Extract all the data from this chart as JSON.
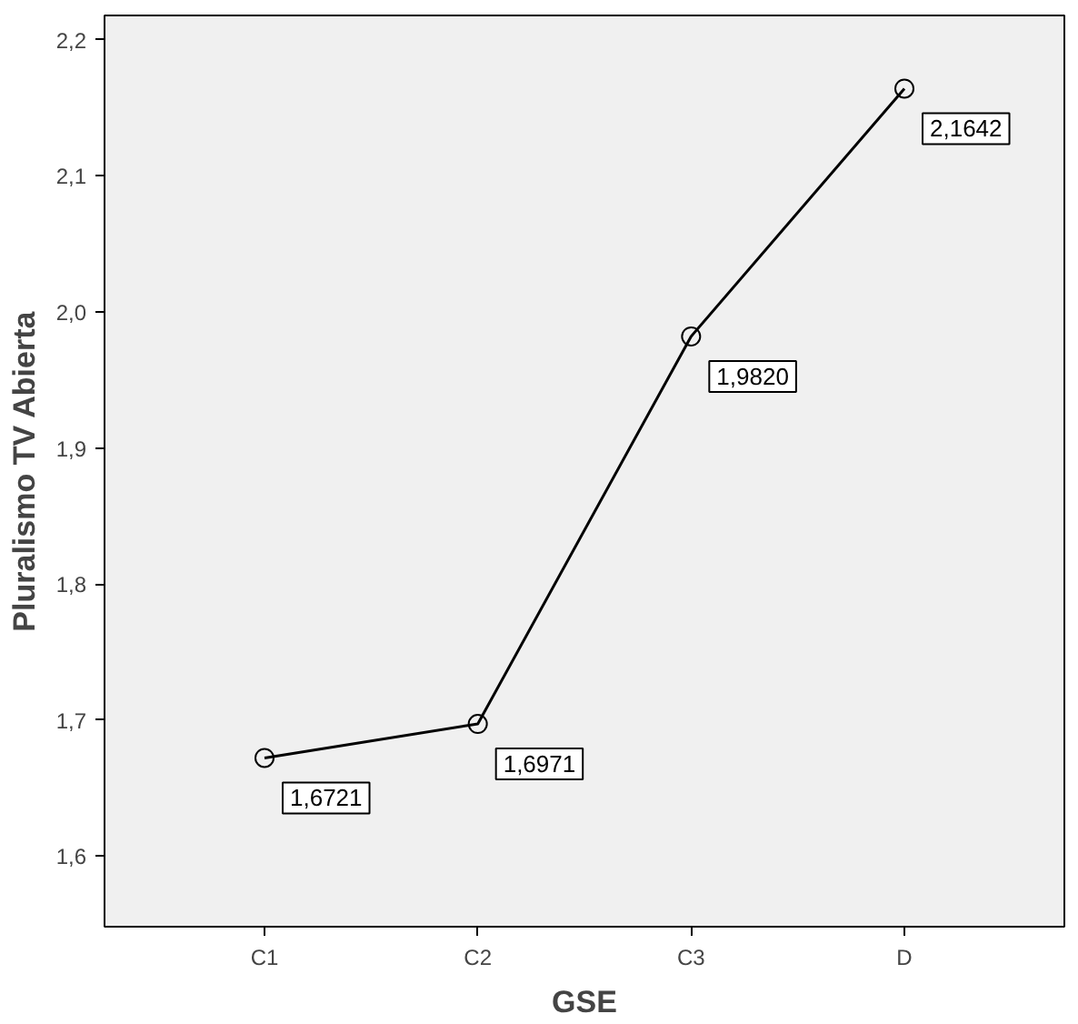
{
  "chart_data": {
    "type": "line",
    "xlabel": "GSE",
    "ylabel": "Pluralismo TV Abierta",
    "categories": [
      "C1",
      "C2",
      "C3",
      "D"
    ],
    "series": [
      {
        "color": "#000000",
        "values": [
          1.6721,
          1.6971,
          1.982,
          2.1642
        ],
        "value_labels": [
          "1,6721",
          "1,6971",
          "1,9820",
          "2,1642"
        ]
      }
    ],
    "ylim": [
      1.548,
      2.218
    ],
    "yticks": [
      {
        "value": 1.6,
        "label": "1,6"
      },
      {
        "value": 1.7,
        "label": "1,7"
      },
      {
        "value": 1.8,
        "label": "1,8"
      },
      {
        "value": 1.9,
        "label": "1,9"
      },
      {
        "value": 2.0,
        "label": "2,0"
      },
      {
        "value": 2.1,
        "label": "2,1"
      },
      {
        "value": 2.2,
        "label": "2,2"
      }
    ],
    "grid": false,
    "marker": "circle",
    "line_style": "solid"
  }
}
